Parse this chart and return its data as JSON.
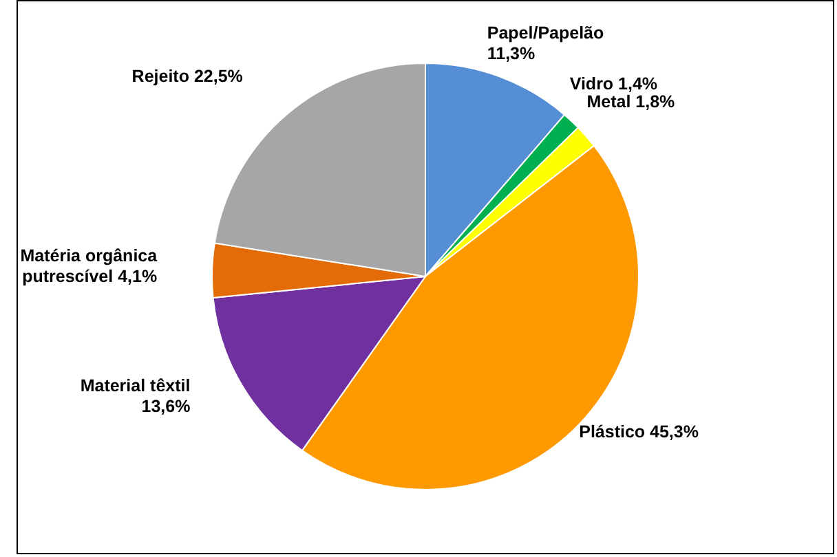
{
  "chart_data": {
    "type": "pie",
    "categories": [
      "Papel/Papelão",
      "Vidro",
      "Metal",
      "Plástico",
      "Material têxtil",
      "Matéria orgânica putrescível",
      "Rejeito"
    ],
    "values": [
      11.3,
      1.4,
      1.8,
      45.3,
      13.6,
      4.1,
      22.5
    ],
    "value_labels": [
      "11,3%",
      "1,4%",
      "1,8%",
      "45,3%",
      "13,6%",
      "4,1%",
      "22,5%"
    ],
    "colors": [
      "#558ed5",
      "#00b050",
      "#ffff00",
      "#ff9900",
      "#7030a0",
      "#e36c09",
      "#a6a6a6"
    ]
  }
}
